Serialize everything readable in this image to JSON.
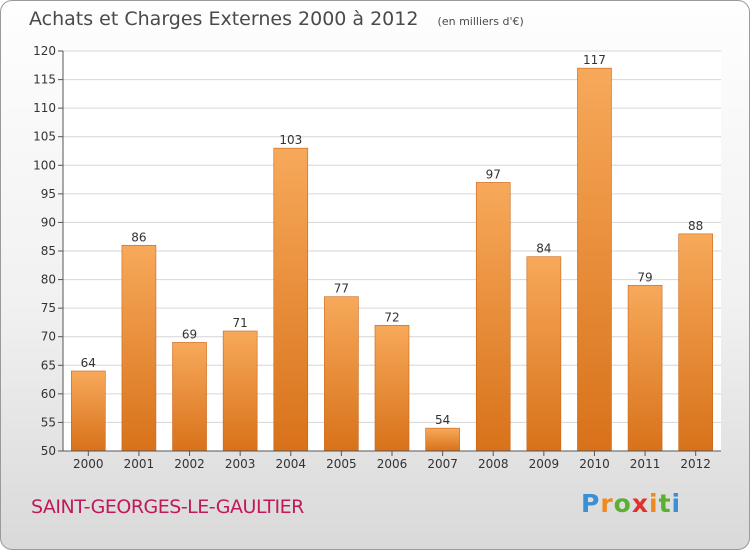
{
  "header": {
    "title": "Achats et Charges Externes 2000 à 2012",
    "unit": "(en milliers d'€)"
  },
  "footer": {
    "commune": "SAINT-GEORGES-LE-GAULTIER",
    "logo": "Proxiti"
  },
  "colors": {
    "bar_top": "#f7a95a",
    "bar_bottom": "#d8721a",
    "commune": "#c2185b"
  },
  "chart_data": {
    "type": "bar",
    "title": "Achats et Charges Externes 2000 à 2012",
    "subtitle": "(en milliers d'€)",
    "categories": [
      "2000",
      "2001",
      "2002",
      "2003",
      "2004",
      "2005",
      "2006",
      "2007",
      "2008",
      "2009",
      "2010",
      "2011",
      "2012"
    ],
    "values": [
      64,
      86,
      69,
      71,
      103,
      77,
      72,
      54,
      97,
      84,
      117,
      79,
      88
    ],
    "ylim": [
      50,
      120
    ],
    "yticks": [
      50,
      55,
      60,
      65,
      70,
      75,
      80,
      85,
      90,
      95,
      100,
      105,
      110,
      115,
      120
    ],
    "grid": true,
    "data_labels": true
  }
}
